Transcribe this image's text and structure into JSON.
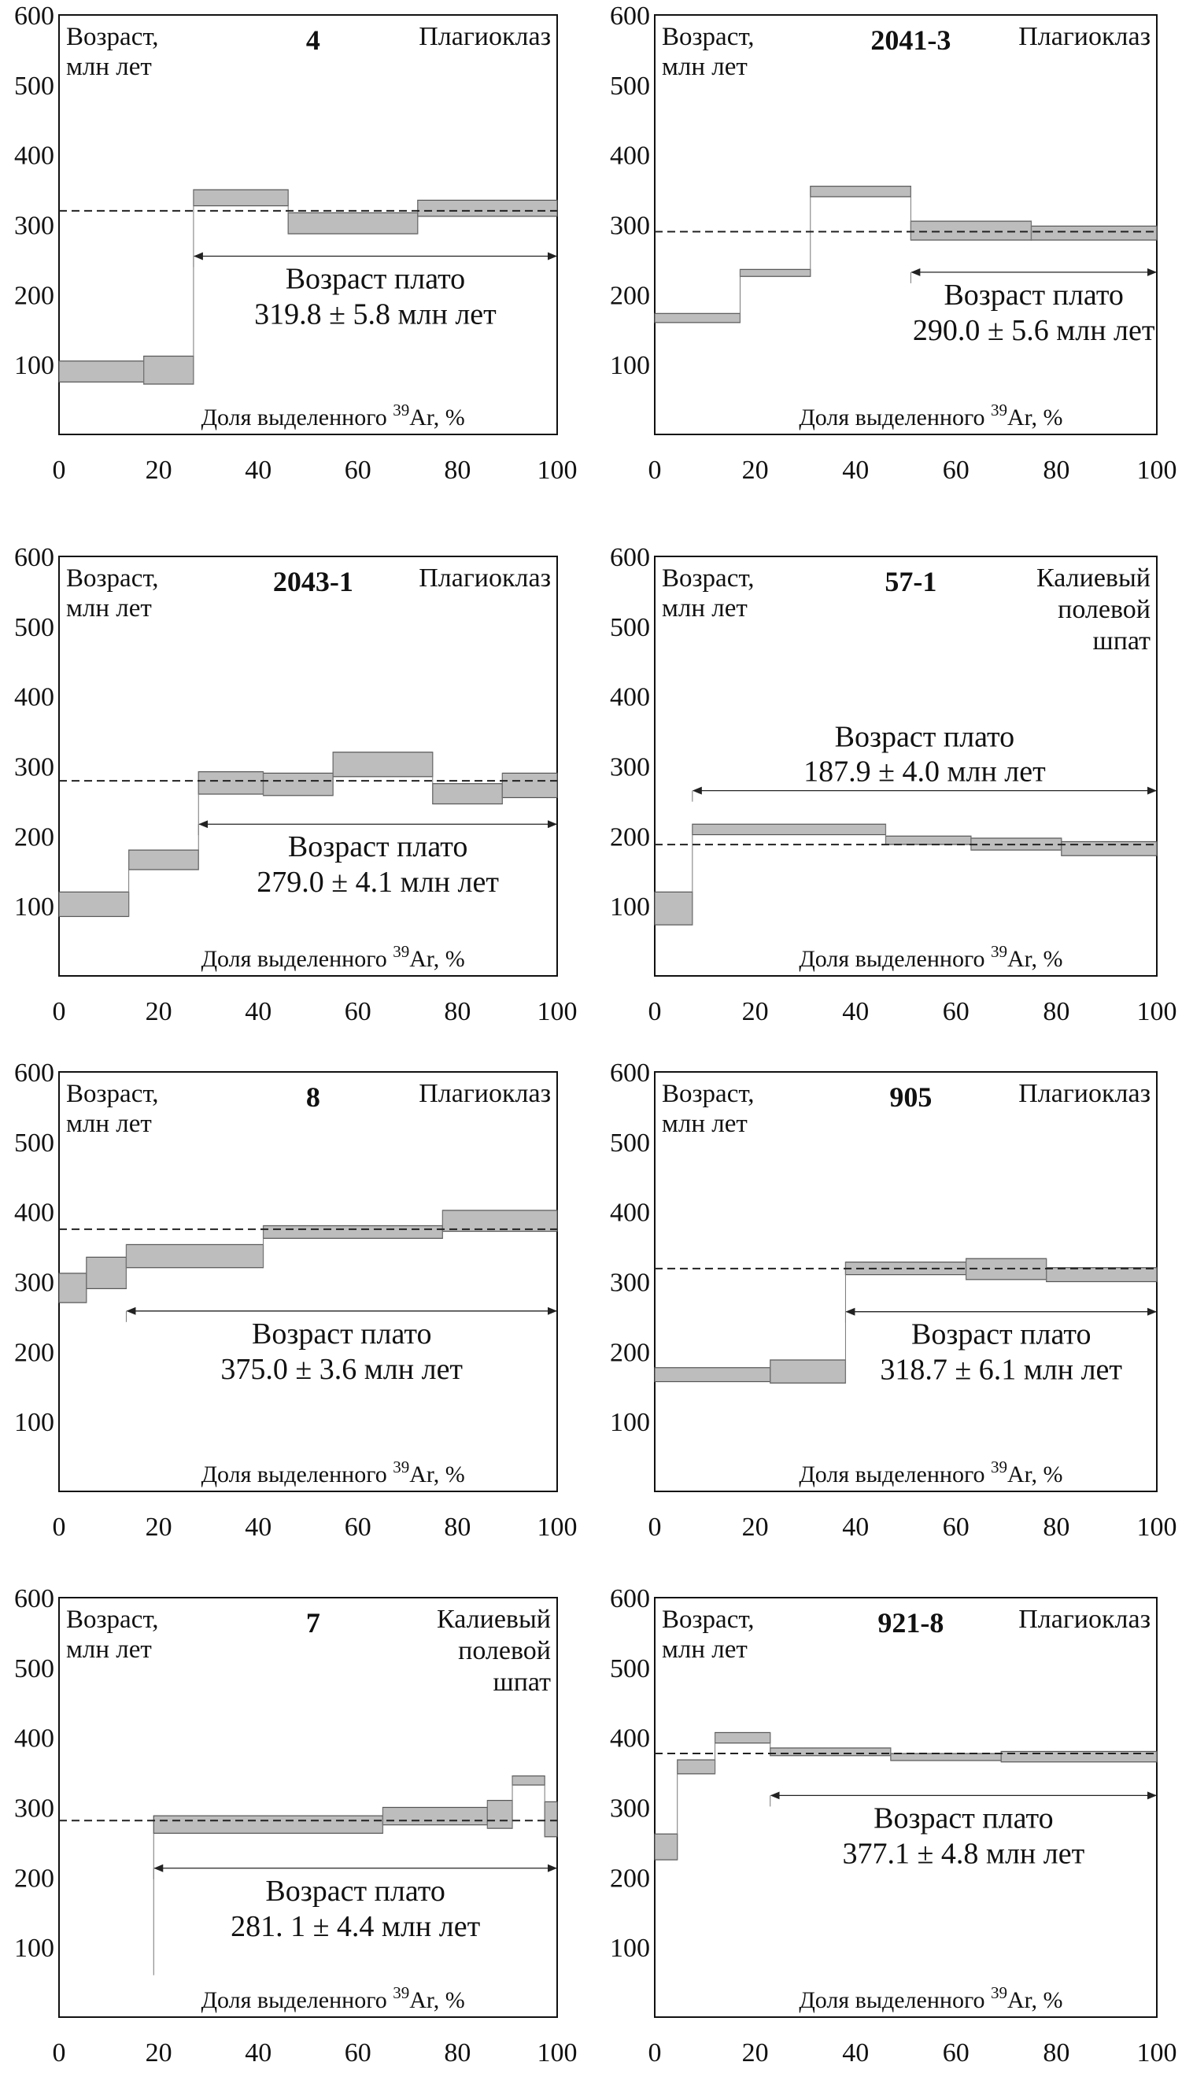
{
  "shared": {
    "y_axis_label_line1": "Возраст,",
    "y_axis_label_line2": "млн лет",
    "x_axis_label": "Доля выделенного",
    "x_axis_sup": "39",
    "x_axis_label_suffix": "Ar, %",
    "plateau_label": "Возраст плато",
    "colors": {
      "step_fill": "#bdbdbd",
      "step_stroke": "#555555",
      "frame": "#111111",
      "dashed_line": "#222222"
    }
  },
  "chart_data": [
    {
      "type": "step-spectrum",
      "sample": "4",
      "mineral": [
        "Плагиоклаз"
      ],
      "xlim": [
        0,
        100
      ],
      "ylim": [
        0,
        600
      ],
      "xticks": [
        0,
        20,
        40,
        60,
        80,
        100
      ],
      "yticks": [
        100,
        200,
        300,
        400,
        500,
        600
      ],
      "steps": [
        {
          "x0": 0,
          "x1": 17,
          "y_lo": 75,
          "y_hi": 105
        },
        {
          "x0": 17,
          "x1": 27,
          "y_lo": 72,
          "y_hi": 112
        },
        {
          "x0": 27,
          "x1": 46,
          "y_lo": 327,
          "y_hi": 350
        },
        {
          "x0": 46,
          "x1": 72,
          "y_lo": 287,
          "y_hi": 317
        },
        {
          "x0": 72,
          "x1": 100,
          "y_lo": 312,
          "y_hi": 335
        }
      ],
      "plateau": {
        "age": 319.8,
        "x_start": 27,
        "x_end": 100,
        "arrow_y": 255,
        "text": "319.8 ± 5.8 млн лет"
      }
    },
    {
      "type": "step-spectrum",
      "sample": "2041-3",
      "mineral": [
        "Плагиоклаз"
      ],
      "xlim": [
        0,
        100
      ],
      "ylim": [
        0,
        600
      ],
      "xticks": [
        0,
        20,
        40,
        60,
        80,
        100
      ],
      "yticks": [
        100,
        200,
        300,
        400,
        500,
        600
      ],
      "steps": [
        {
          "x0": 0,
          "x1": 17,
          "y_lo": 160,
          "y_hi": 173
        },
        {
          "x0": 17,
          "x1": 31,
          "y_lo": 226,
          "y_hi": 236
        },
        {
          "x0": 31,
          "x1": 51,
          "y_lo": 340,
          "y_hi": 355
        },
        {
          "x0": 51,
          "x1": 75,
          "y_lo": 278,
          "y_hi": 305
        },
        {
          "x0": 75,
          "x1": 100,
          "y_lo": 278,
          "y_hi": 298
        }
      ],
      "plateau": {
        "age": 290.0,
        "x_start": 51,
        "x_end": 100,
        "arrow_y": 232,
        "text": "290.0 ± 5.6 млн лет"
      }
    },
    {
      "type": "step-spectrum",
      "sample": "2043-1",
      "mineral": [
        "Плагиоклаз"
      ],
      "xlim": [
        0,
        100
      ],
      "ylim": [
        0,
        600
      ],
      "xticks": [
        0,
        20,
        40,
        60,
        80,
        100
      ],
      "yticks": [
        100,
        200,
        300,
        400,
        500,
        600
      ],
      "steps": [
        {
          "x0": 0,
          "x1": 14,
          "y_lo": 85,
          "y_hi": 120
        },
        {
          "x0": 14,
          "x1": 28,
          "y_lo": 152,
          "y_hi": 180
        },
        {
          "x0": 28,
          "x1": 41,
          "y_lo": 260,
          "y_hi": 292
        },
        {
          "x0": 41,
          "x1": 55,
          "y_lo": 258,
          "y_hi": 290
        },
        {
          "x0": 55,
          "x1": 75,
          "y_lo": 285,
          "y_hi": 320
        },
        {
          "x0": 75,
          "x1": 89,
          "y_lo": 246,
          "y_hi": 275
        },
        {
          "x0": 89,
          "x1": 100,
          "y_lo": 255,
          "y_hi": 290
        }
      ],
      "plateau": {
        "age": 279.0,
        "x_start": 28,
        "x_end": 100,
        "arrow_y": 217,
        "text": "279.0 ± 4.1 млн лет"
      }
    },
    {
      "type": "step-spectrum",
      "sample": "57-1",
      "mineral": [
        "Калиевый",
        "полевой",
        "шпат"
      ],
      "xlim": [
        0,
        100
      ],
      "ylim": [
        0,
        600
      ],
      "xticks": [
        0,
        20,
        40,
        60,
        80,
        100
      ],
      "yticks": [
        100,
        200,
        300,
        400,
        500,
        600
      ],
      "steps": [
        {
          "x0": 0,
          "x1": 7.5,
          "y_lo": 73,
          "y_hi": 120
        },
        {
          "x0": 7.5,
          "x1": 46,
          "y_lo": 202,
          "y_hi": 217
        },
        {
          "x0": 46,
          "x1": 63,
          "y_lo": 188,
          "y_hi": 200
        },
        {
          "x0": 63,
          "x1": 81,
          "y_lo": 180,
          "y_hi": 197
        },
        {
          "x0": 81,
          "x1": 100,
          "y_lo": 172,
          "y_hi": 192
        }
      ],
      "plateau": {
        "age": 187.9,
        "x_start": 7.5,
        "x_end": 100,
        "arrow_y": 265,
        "text": "187.9 ± 4.0 млн лет",
        "text_above": true
      }
    },
    {
      "type": "step-spectrum",
      "sample": "8",
      "mineral": [
        "Плагиоклаз"
      ],
      "xlim": [
        0,
        100
      ],
      "ylim": [
        0,
        600
      ],
      "xticks": [
        0,
        20,
        40,
        60,
        80,
        100
      ],
      "yticks": [
        100,
        200,
        300,
        400,
        500,
        600
      ],
      "steps": [
        {
          "x0": 0,
          "x1": 5.5,
          "y_lo": 270,
          "y_hi": 312
        },
        {
          "x0": 5.5,
          "x1": 13.5,
          "y_lo": 290,
          "y_hi": 335
        },
        {
          "x0": 13.5,
          "x1": 41,
          "y_lo": 320,
          "y_hi": 353
        },
        {
          "x0": 41,
          "x1": 77,
          "y_lo": 362,
          "y_hi": 380
        },
        {
          "x0": 77,
          "x1": 100,
          "y_lo": 372,
          "y_hi": 402
        }
      ],
      "plateau": {
        "age": 375.0,
        "x_start": 13.5,
        "x_end": 100,
        "arrow_y": 258,
        "text": "375.0 ± 3.6 млн лет"
      }
    },
    {
      "type": "step-spectrum",
      "sample": "905",
      "mineral": [
        "Плагиоклаз"
      ],
      "xlim": [
        0,
        100
      ],
      "ylim": [
        0,
        600
      ],
      "xticks": [
        0,
        20,
        40,
        60,
        80,
        100
      ],
      "yticks": [
        100,
        200,
        300,
        400,
        500,
        600
      ],
      "steps": [
        {
          "x0": 0,
          "x1": 23,
          "y_lo": 157,
          "y_hi": 177
        },
        {
          "x0": 23,
          "x1": 38,
          "y_lo": 155,
          "y_hi": 188
        },
        {
          "x0": 38,
          "x1": 62,
          "y_lo": 310,
          "y_hi": 328
        },
        {
          "x0": 62,
          "x1": 78,
          "y_lo": 303,
          "y_hi": 333
        },
        {
          "x0": 78,
          "x1": 100,
          "y_lo": 300,
          "y_hi": 320
        }
      ],
      "plateau": {
        "age": 318.7,
        "x_start": 38,
        "x_end": 100,
        "arrow_y": 257,
        "text": "318.7 ± 6.1 млн лет"
      }
    },
    {
      "type": "step-spectrum",
      "sample": "7",
      "mineral": [
        "Калиевый",
        "полевой",
        "шпат"
      ],
      "xlim": [
        0,
        100
      ],
      "ylim": [
        0,
        600
      ],
      "xticks": [
        0,
        20,
        40,
        60,
        80,
        100
      ],
      "yticks": [
        100,
        200,
        300,
        400,
        500,
        600
      ],
      "steps": [
        {
          "x0": 19,
          "x1": 65,
          "y_lo": 263,
          "y_hi": 288
        },
        {
          "x0": 65,
          "x1": 86,
          "y_lo": 275,
          "y_hi": 300
        },
        {
          "x0": 86,
          "x1": 91,
          "y_lo": 270,
          "y_hi": 310
        },
        {
          "x0": 91,
          "x1": 97.5,
          "y_lo": 332,
          "y_hi": 345
        },
        {
          "x0": 97.5,
          "x1": 100,
          "y_lo": 258,
          "y_hi": 308
        }
      ],
      "plateau": {
        "age": 281.1,
        "x_start": 19,
        "x_end": 100,
        "arrow_y": 213,
        "text": "281. 1 ± 4.4 млн лет"
      },
      "leading_line": {
        "x": 19,
        "y_from": 60,
        "y_to": 263
      }
    },
    {
      "type": "step-spectrum",
      "sample": "921-8",
      "mineral": [
        "Плагиоклаз"
      ],
      "xlim": [
        0,
        100
      ],
      "ylim": [
        0,
        600
      ],
      "xticks": [
        0,
        20,
        40,
        60,
        80,
        100
      ],
      "yticks": [
        100,
        200,
        300,
        400,
        500,
        600
      ],
      "steps": [
        {
          "x0": 0,
          "x1": 4.5,
          "y_lo": 225,
          "y_hi": 262
        },
        {
          "x0": 4.5,
          "x1": 12,
          "y_lo": 348,
          "y_hi": 368
        },
        {
          "x0": 12,
          "x1": 23,
          "y_lo": 392,
          "y_hi": 407
        },
        {
          "x0": 23,
          "x1": 47,
          "y_lo": 374,
          "y_hi": 385
        },
        {
          "x0": 47,
          "x1": 69,
          "y_lo": 367,
          "y_hi": 377
        },
        {
          "x0": 69,
          "x1": 100,
          "y_lo": 365,
          "y_hi": 380
        }
      ],
      "plateau": {
        "age": 377.1,
        "x_start": 23,
        "x_end": 100,
        "arrow_y": 317,
        "text": "377.1 ± 4.8 млн лет"
      }
    }
  ]
}
